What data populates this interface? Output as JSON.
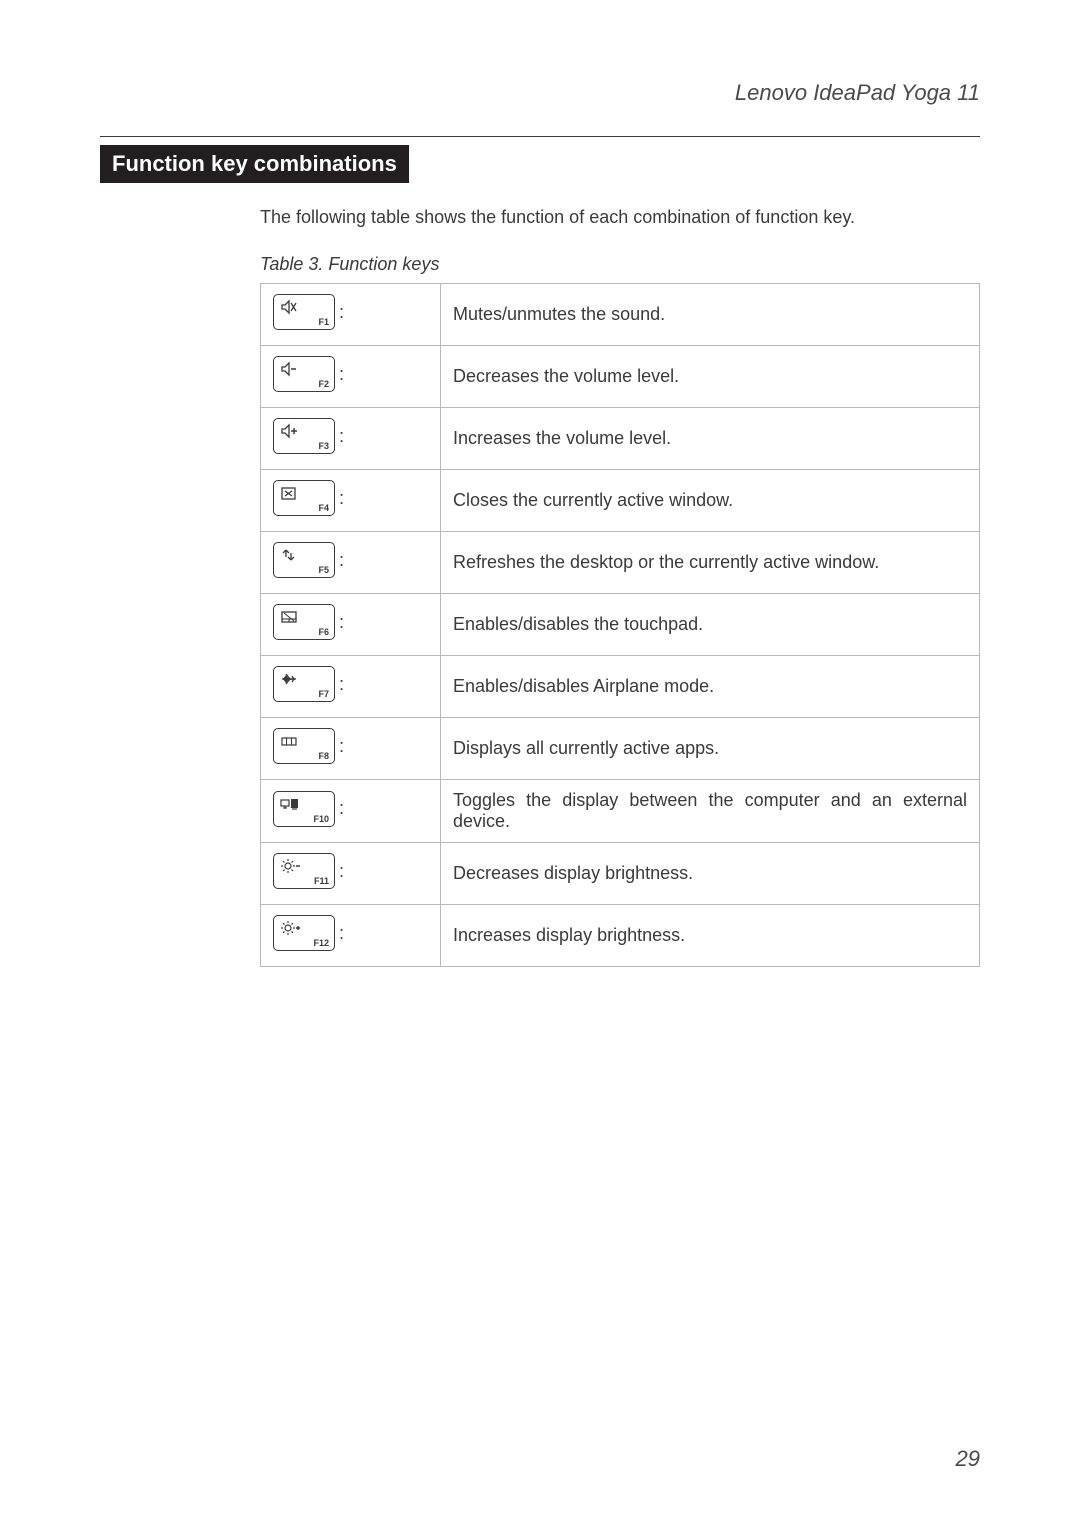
{
  "header": {
    "product_title": "Lenovo IdeaPad Yoga 11"
  },
  "section": {
    "title": "Function key combinations",
    "intro": "The following table shows the function of each combination of function key.",
    "table_caption": "Table 3. Function keys"
  },
  "style": {
    "key_border_color": "#3a3a3a",
    "table_border_color": "#b9b9b9",
    "text_color": "#3a3a3a",
    "section_title_bg": "#231f20",
    "section_title_fg": "#ffffff",
    "page_bg": "#ffffff"
  },
  "function_keys": [
    {
      "f": "F1",
      "icon": "mute-icon",
      "desc": "Mutes/unmutes the sound."
    },
    {
      "f": "F2",
      "icon": "volume-down-icon",
      "desc": "Decreases the volume level."
    },
    {
      "f": "F3",
      "icon": "volume-up-icon",
      "desc": "Increases the volume level."
    },
    {
      "f": "F4",
      "icon": "close-window-icon",
      "desc": "Closes the currently active window."
    },
    {
      "f": "F5",
      "icon": "refresh-icon",
      "desc": "Refreshes the desktop or the currently active window."
    },
    {
      "f": "F6",
      "icon": "touchpad-icon",
      "desc": "Enables/disables the touchpad."
    },
    {
      "f": "F7",
      "icon": "airplane-icon",
      "desc": "Enables/disables Airplane mode."
    },
    {
      "f": "F8",
      "icon": "apps-icon",
      "desc": "Displays all currently active apps."
    },
    {
      "f": "F10",
      "icon": "display-toggle-icon",
      "desc": "Toggles the display between the computer and an external device.",
      "justify": true
    },
    {
      "f": "F11",
      "icon": "brightness-down-icon",
      "desc": "Decreases display brightness."
    },
    {
      "f": "F12",
      "icon": "brightness-up-icon",
      "desc": "Increases display brightness."
    }
  ],
  "page_number": "29"
}
